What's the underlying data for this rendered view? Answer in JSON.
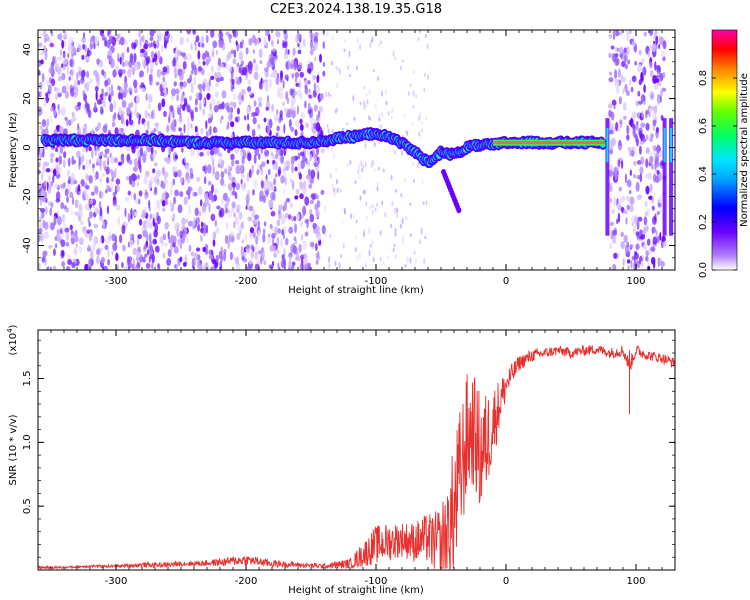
{
  "title": "C2E3.2024.138.19.35.G18",
  "colors": {
    "line": "#e8312f",
    "frame": "#000000",
    "band_core": "#e06a6a"
  },
  "chart_data": [
    {
      "type": "heatmap",
      "xlabel": "Height of straight line (km)",
      "ylabel": "Frequency (Hz)",
      "xlim": [
        -360,
        130
      ],
      "ylim": [
        -50,
        48
      ],
      "xticks": [
        -300,
        -200,
        -100,
        0,
        100
      ],
      "xtick_labels": [
        "-300",
        "-200",
        "-100",
        "0",
        "100"
      ],
      "yticks": [
        -40,
        -20,
        0,
        20,
        40
      ],
      "ytick_labels": [
        "-40",
        "-20",
        "0",
        "20",
        "40"
      ],
      "colorbar": {
        "label": "Normalized spectral amplitude",
        "range": [
          0,
          1
        ],
        "ticks": [
          0.0,
          0.2,
          0.4,
          0.6,
          0.8
        ],
        "tick_labels": [
          "0.0",
          "0.2",
          "0.4",
          "0.6",
          "0.8"
        ],
        "colormap": [
          "#ffffff",
          "#6a00ff",
          "#0000ff",
          "#00e5ff",
          "#00ff00",
          "#ffff00",
          "#ff8000",
          "#ff0000",
          "#ff00aa"
        ]
      },
      "dominant_band": [
        [
          -355,
          3
        ],
        [
          -330,
          3
        ],
        [
          -300,
          3
        ],
        [
          -270,
          3
        ],
        [
          -240,
          2
        ],
        [
          -210,
          2
        ],
        [
          -180,
          2
        ],
        [
          -150,
          2
        ],
        [
          -125,
          4
        ],
        [
          -110,
          5
        ],
        [
          -100,
          6
        ],
        [
          -90,
          4
        ],
        [
          -80,
          2
        ],
        [
          -70,
          -2
        ],
        [
          -60,
          -6
        ],
        [
          -50,
          -2
        ],
        [
          -40,
          -3
        ],
        [
          -30,
          0
        ],
        [
          -20,
          1
        ],
        [
          -10,
          1
        ],
        [
          0,
          2
        ],
        [
          20,
          2
        ],
        [
          40,
          2
        ],
        [
          60,
          2
        ],
        [
          75,
          2
        ]
      ],
      "noise_regions": [
        [
          -360,
          -140
        ],
        [
          80,
          122
        ]
      ]
    },
    {
      "type": "line",
      "xlabel": "Height of straight line (km)",
      "ylabel": "SNR (10 * v/v)",
      "yscale_label": "(x10",
      "yscale_exp": "4",
      "xlim": [
        -360,
        130
      ],
      "ylim": [
        0,
        1.88
      ],
      "xticks": [
        -300,
        -200,
        -100,
        0,
        100
      ],
      "xtick_labels": [
        "-300",
        "-200",
        "-100",
        "0",
        "100"
      ],
      "yticks": [
        0.5,
        1.0,
        1.5
      ],
      "ytick_labels": [
        "0.5",
        "1.0",
        "1.5"
      ],
      "series": [
        {
          "x": [
            -360,
            -340,
            -320,
            -300,
            -280,
            -260,
            -250,
            -240,
            -220,
            -200,
            -180,
            -160,
            -140,
            -120,
            -110,
            -100,
            -90,
            -80,
            -70,
            -60,
            -55,
            -50,
            -45,
            -40,
            -35,
            -30,
            -25,
            -20,
            -15,
            -10,
            -5,
            0,
            10,
            20,
            30,
            40,
            50,
            60,
            70,
            80,
            90,
            95,
            100,
            110,
            120,
            130
          ],
          "y": [
            0.02,
            0.02,
            0.03,
            0.03,
            0.04,
            0.04,
            0.05,
            0.05,
            0.06,
            0.08,
            0.05,
            0.04,
            0.03,
            0.05,
            0.12,
            0.2,
            0.22,
            0.24,
            0.22,
            0.25,
            0.2,
            0.22,
            0.3,
            0.45,
            0.75,
            1.05,
            1.1,
            0.9,
            1.0,
            1.15,
            1.3,
            1.45,
            1.62,
            1.68,
            1.7,
            1.72,
            1.7,
            1.72,
            1.73,
            1.7,
            1.72,
            1.6,
            1.72,
            1.68,
            1.66,
            1.62
          ],
          "spread": [
            0.01,
            0.01,
            0.01,
            0.01,
            0.02,
            0.02,
            0.02,
            0.02,
            0.03,
            0.04,
            0.03,
            0.02,
            0.02,
            0.04,
            0.1,
            0.15,
            0.15,
            0.14,
            0.16,
            0.2,
            0.25,
            0.3,
            0.4,
            0.55,
            0.55,
            0.5,
            0.45,
            0.5,
            0.4,
            0.3,
            0.2,
            0.12,
            0.06,
            0.05,
            0.04,
            0.04,
            0.04,
            0.04,
            0.04,
            0.04,
            0.05,
            0.06,
            0.05,
            0.04,
            0.04,
            0.04
          ]
        }
      ]
    }
  ]
}
